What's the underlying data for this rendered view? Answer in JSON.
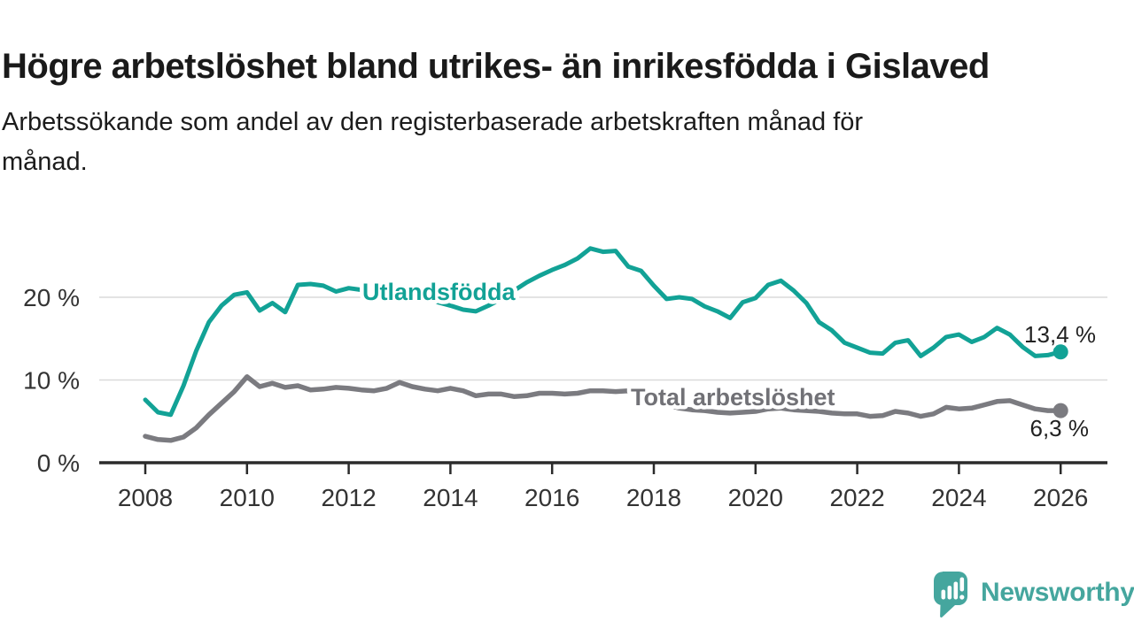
{
  "page": {
    "brand": {
      "name": "Newsworthy",
      "color": "#45A69E"
    }
  },
  "chart_data": {
    "type": "line",
    "title": "Högre arbetslöshet bland utrikes- än inrikesfödda i Gislaved",
    "subtitle_lines": [
      "Arbetssökande som andel av den registerbaserade arbetskraften månad för",
      "månad."
    ],
    "grid": "horizontal",
    "legend": "inline-labels",
    "x_axis": {
      "start": 2008,
      "step_years": 0.25,
      "end": 2026,
      "ticks": [
        2008,
        2010,
        2012,
        2014,
        2016,
        2018,
        2020,
        2022,
        2024,
        2026
      ]
    },
    "y_axis": {
      "min": 0,
      "max": 28,
      "ticks": [
        0,
        10,
        20
      ],
      "tick_labels": [
        "0 %",
        "10 %",
        "20 %"
      ]
    },
    "colors": {
      "grid": "#dadada",
      "axis": "#2b2b2b",
      "tick_text": "#333333",
      "annotation_text": "#222222"
    },
    "series": [
      {
        "name": "Utlandsfödda",
        "color": "#12A296",
        "label_color": "#12A296",
        "stroke_width": 5,
        "label_pos": {
          "x": 409,
          "y": 339
        },
        "end_value": 13.4,
        "end_label": "13,4 %",
        "end_label_pos": {
          "x": 1237,
          "y": 387
        },
        "values": [
          7.6,
          6.1,
          5.8,
          9.3,
          13.5,
          17.0,
          19.0,
          20.3,
          20.6,
          18.4,
          19.3,
          18.2,
          21.5,
          21.6,
          21.4,
          20.7,
          21.1,
          20.9,
          20.4,
          20.7,
          20.9,
          20.5,
          20.0,
          19.4,
          19.0,
          18.5,
          18.3,
          19.0,
          19.8,
          20.8,
          21.8,
          22.6,
          23.3,
          23.9,
          24.7,
          25.9,
          25.5,
          25.6,
          23.7,
          23.2,
          21.4,
          19.8,
          20.0,
          19.8,
          18.9,
          18.3,
          17.5,
          19.4,
          19.9,
          21.5,
          22.0,
          20.8,
          19.3,
          17.0,
          16.0,
          14.5,
          13.9,
          13.3,
          13.2,
          14.5,
          14.8,
          12.9,
          13.9,
          15.2,
          15.5,
          14.6,
          15.2,
          16.3,
          15.5,
          14.0,
          12.9,
          13.0,
          13.4
        ]
      },
      {
        "name": "Total arbetslöshet",
        "color": "#7B7B80",
        "label_color": "#717176",
        "stroke_width": 5.5,
        "label_pos": {
          "x": 712,
          "y": 458
        },
        "end_value": 6.3,
        "end_label": "6,3 %",
        "end_label_pos": {
          "x": 1229,
          "y": 493
        },
        "values": [
          3.2,
          2.8,
          2.7,
          3.1,
          4.2,
          5.8,
          7.2,
          8.6,
          10.4,
          9.2,
          9.6,
          9.1,
          9.3,
          8.8,
          8.9,
          9.1,
          9.0,
          8.8,
          8.7,
          9.0,
          9.7,
          9.2,
          8.9,
          8.7,
          9.0,
          8.7,
          8.1,
          8.3,
          8.3,
          8.0,
          8.1,
          8.4,
          8.4,
          8.3,
          8.4,
          8.7,
          8.7,
          8.6,
          8.7,
          8.3,
          7.6,
          7.0,
          6.6,
          6.4,
          6.3,
          6.1,
          6.0,
          6.1,
          6.2,
          6.5,
          6.6,
          6.4,
          6.3,
          6.2,
          6.0,
          5.9,
          5.9,
          5.6,
          5.7,
          6.2,
          6.0,
          5.6,
          5.9,
          6.7,
          6.5,
          6.6,
          7.0,
          7.4,
          7.5,
          7.0,
          6.5,
          6.3,
          6.3
        ]
      }
    ]
  }
}
